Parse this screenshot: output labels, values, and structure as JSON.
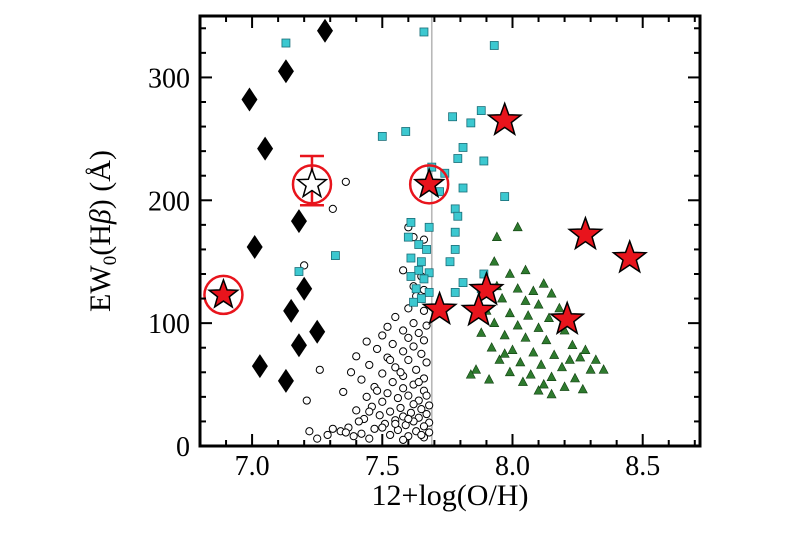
{
  "chart_data": {
    "type": "scatter",
    "xlabel": "12+log(O/H)",
    "ylabel_parts": {
      "pre": "EW",
      "sub": "0",
      "mid": "(H",
      "greek": "β",
      "post": ") (Å)"
    },
    "xlim": [
      6.8,
      8.72
    ],
    "ylim": [
      0,
      350
    ],
    "xticks": [
      7.0,
      7.5,
      8.0,
      8.5
    ],
    "xtick_labels": [
      "7.0",
      "7.5",
      "8.0",
      "8.5"
    ],
    "yticks": [
      0,
      100,
      200,
      300
    ],
    "ytick_labels": [
      "0",
      "100",
      "200",
      "300"
    ],
    "grid": false,
    "legend": "none",
    "reference_lines": [
      {
        "orientation": "vertical",
        "x": 7.69,
        "color": "#b8b8b8"
      }
    ],
    "series": [
      {
        "marker": "diamond",
        "color": "#000000",
        "points": [
          [
            7.28,
            338
          ],
          [
            7.13,
            305
          ],
          [
            6.99,
            282
          ],
          [
            7.05,
            242
          ],
          [
            7.01,
            162
          ],
          [
            7.18,
            183
          ],
          [
            7.2,
            128
          ],
          [
            7.15,
            110
          ],
          [
            7.25,
            93
          ],
          [
            7.18,
            82
          ],
          [
            7.03,
            65
          ],
          [
            7.13,
            53
          ]
        ]
      },
      {
        "marker": "open-circle",
        "color": "#000000",
        "points": [
          [
            7.36,
            215
          ],
          [
            7.31,
            193
          ],
          [
            7.6,
            178
          ],
          [
            7.62,
            170
          ],
          [
            7.66,
            168
          ],
          [
            7.2,
            147
          ],
          [
            7.58,
            143
          ],
          [
            7.65,
            138
          ],
          [
            7.62,
            130
          ],
          [
            7.66,
            127
          ],
          [
            7.63,
            122
          ],
          [
            7.6,
            112
          ],
          [
            7.66,
            110
          ],
          [
            7.55,
            105
          ],
          [
            7.62,
            100
          ],
          [
            7.67,
            98
          ],
          [
            7.52,
            97
          ],
          [
            7.58,
            94
          ],
          [
            7.64,
            92
          ],
          [
            7.5,
            90
          ],
          [
            7.6,
            88
          ],
          [
            7.66,
            86
          ],
          [
            7.44,
            85
          ],
          [
            7.54,
            83
          ],
          [
            7.62,
            81
          ],
          [
            7.48,
            79
          ],
          [
            7.58,
            77
          ],
          [
            7.65,
            75
          ],
          [
            7.4,
            73
          ],
          [
            7.52,
            72
          ],
          [
            7.6,
            70
          ],
          [
            7.67,
            68
          ],
          [
            7.45,
            66
          ],
          [
            7.55,
            64
          ],
          [
            7.63,
            62
          ],
          [
            7.38,
            60
          ],
          [
            7.5,
            59
          ],
          [
            7.58,
            57
          ],
          [
            7.66,
            55
          ],
          [
            7.42,
            54
          ],
          [
            7.54,
            52
          ],
          [
            7.62,
            50
          ],
          [
            7.47,
            48
          ],
          [
            7.58,
            47
          ],
          [
            7.66,
            45
          ],
          [
            7.35,
            44
          ],
          [
            7.52,
            43
          ],
          [
            7.6,
            41
          ],
          [
            7.44,
            40
          ],
          [
            7.56,
            39
          ],
          [
            7.64,
            37
          ],
          [
            7.5,
            36
          ],
          [
            7.62,
            34
          ],
          [
            7.68,
            33
          ],
          [
            7.46,
            32
          ],
          [
            7.57,
            31
          ],
          [
            7.65,
            30
          ],
          [
            7.4,
            29
          ],
          [
            7.53,
            28
          ],
          [
            7.61,
            27
          ],
          [
            7.67,
            26
          ],
          [
            7.49,
            25
          ],
          [
            7.58,
            24
          ],
          [
            7.64,
            23
          ],
          [
            7.43,
            22
          ],
          [
            7.55,
            21
          ],
          [
            7.62,
            20
          ],
          [
            7.68,
            19
          ],
          [
            7.51,
            18
          ],
          [
            7.59,
            17
          ],
          [
            7.66,
            16
          ],
          [
            7.37,
            15
          ],
          [
            7.47,
            14
          ],
          [
            7.56,
            13
          ],
          [
            7.63,
            12
          ],
          [
            7.68,
            11
          ],
          [
            7.42,
            10
          ],
          [
            7.53,
            9
          ],
          [
            7.6,
            8
          ],
          [
            7.66,
            7
          ],
          [
            7.34,
            12
          ],
          [
            7.39,
            8
          ],
          [
            7.31,
            14
          ],
          [
            7.45,
            6
          ],
          [
            7.58,
            5
          ],
          [
            7.65,
            9
          ],
          [
            7.21,
            37
          ],
          [
            7.26,
            62
          ],
          [
            7.22,
            12
          ],
          [
            7.25,
            6
          ],
          [
            7.5,
            15
          ],
          [
            7.55,
            18
          ],
          [
            7.6,
            22
          ],
          [
            7.67,
            41
          ],
          [
            7.64,
            52
          ],
          [
            7.57,
            60
          ],
          [
            7.53,
            70
          ],
          [
            7.48,
            45
          ],
          [
            7.45,
            28
          ],
          [
            7.41,
            20
          ],
          [
            7.36,
            11
          ],
          [
            7.29,
            9
          ]
        ]
      },
      {
        "marker": "square",
        "color": "#3cc8d0",
        "points": [
          [
            7.13,
            328
          ],
          [
            7.66,
            337
          ],
          [
            7.93,
            326
          ],
          [
            7.88,
            273
          ],
          [
            7.77,
            268
          ],
          [
            7.84,
            263
          ],
          [
            7.59,
            256
          ],
          [
            7.5,
            252
          ],
          [
            7.81,
            243
          ],
          [
            7.79,
            234
          ],
          [
            7.89,
            232
          ],
          [
            7.69,
            227
          ],
          [
            7.74,
            222
          ],
          [
            7.81,
            210
          ],
          [
            7.72,
            207
          ],
          [
            7.97,
            203
          ],
          [
            7.78,
            193
          ],
          [
            7.79,
            187
          ],
          [
            7.61,
            182
          ],
          [
            7.68,
            178
          ],
          [
            7.78,
            174
          ],
          [
            7.6,
            170
          ],
          [
            7.64,
            164
          ],
          [
            7.67,
            160
          ],
          [
            7.78,
            160
          ],
          [
            7.61,
            153
          ],
          [
            7.65,
            150
          ],
          [
            7.76,
            150
          ],
          [
            7.32,
            155
          ],
          [
            7.64,
            143
          ],
          [
            7.68,
            141
          ],
          [
            7.61,
            138
          ],
          [
            7.66,
            136
          ],
          [
            7.81,
            133
          ],
          [
            7.88,
            128
          ],
          [
            7.63,
            128
          ],
          [
            7.68,
            125
          ],
          [
            7.78,
            125
          ],
          [
            7.89,
            140
          ],
          [
            7.18,
            142
          ],
          [
            7.65,
            120
          ],
          [
            7.62,
            117
          ]
        ]
      },
      {
        "marker": "triangle",
        "color": "#2e7a2e",
        "points": [
          [
            8.02,
            178
          ],
          [
            7.94,
            170
          ],
          [
            7.93,
            150
          ],
          [
            8.05,
            143
          ],
          [
            7.99,
            140
          ],
          [
            8.12,
            132
          ],
          [
            7.94,
            130
          ],
          [
            8.02,
            128
          ],
          [
            8.08,
            126
          ],
          [
            8.15,
            124
          ],
          [
            7.96,
            120
          ],
          [
            8.05,
            118
          ],
          [
            8.1,
            115
          ],
          [
            8.18,
            112
          ],
          [
            7.9,
            110
          ],
          [
            7.99,
            108
          ],
          [
            8.06,
            106
          ],
          [
            8.14,
            104
          ],
          [
            7.93,
            100
          ],
          [
            8.02,
            98
          ],
          [
            8.1,
            96
          ],
          [
            8.2,
            94
          ],
          [
            7.88,
            92
          ],
          [
            7.97,
            90
          ],
          [
            8.05,
            88
          ],
          [
            8.13,
            86
          ],
          [
            8.23,
            82
          ],
          [
            7.92,
            80
          ],
          [
            8.0,
            78
          ],
          [
            8.08,
            76
          ],
          [
            8.16,
            74
          ],
          [
            8.26,
            72
          ],
          [
            7.95,
            70
          ],
          [
            8.03,
            68
          ],
          [
            8.11,
            66
          ],
          [
            8.19,
            64
          ],
          [
            8.3,
            62
          ],
          [
            8.35,
            62
          ],
          [
            7.86,
            62
          ],
          [
            7.99,
            60
          ],
          [
            8.07,
            58
          ],
          [
            8.15,
            56
          ],
          [
            8.24,
            55
          ],
          [
            7.91,
            54
          ],
          [
            8.04,
            52
          ],
          [
            8.12,
            50
          ],
          [
            8.2,
            48
          ],
          [
            8.1,
            45
          ],
          [
            8.15,
            42
          ],
          [
            8.27,
            46
          ],
          [
            7.97,
            75
          ],
          [
            8.22,
            70
          ],
          [
            8.28,
            78
          ],
          [
            7.84,
            58
          ],
          [
            8.32,
            70
          ]
        ]
      },
      {
        "marker": "star",
        "color": "#e8141c",
        "points": [
          [
            7.97,
            265
          ],
          [
            8.28,
            172
          ],
          [
            8.45,
            153
          ],
          [
            7.9,
            127
          ],
          [
            7.72,
            111
          ],
          [
            7.87,
            110
          ],
          [
            8.21,
            103
          ]
        ]
      },
      {
        "marker": "star-ringed",
        "color": "#e8141c",
        "points": [
          [
            6.89,
            123
          ],
          [
            7.68,
            213
          ]
        ]
      },
      {
        "marker": "open-star-ringed",
        "color": "#e8141c",
        "points": [
          [
            7.23,
            213
          ]
        ],
        "error": [
          [
            236,
            196
          ]
        ]
      }
    ]
  }
}
